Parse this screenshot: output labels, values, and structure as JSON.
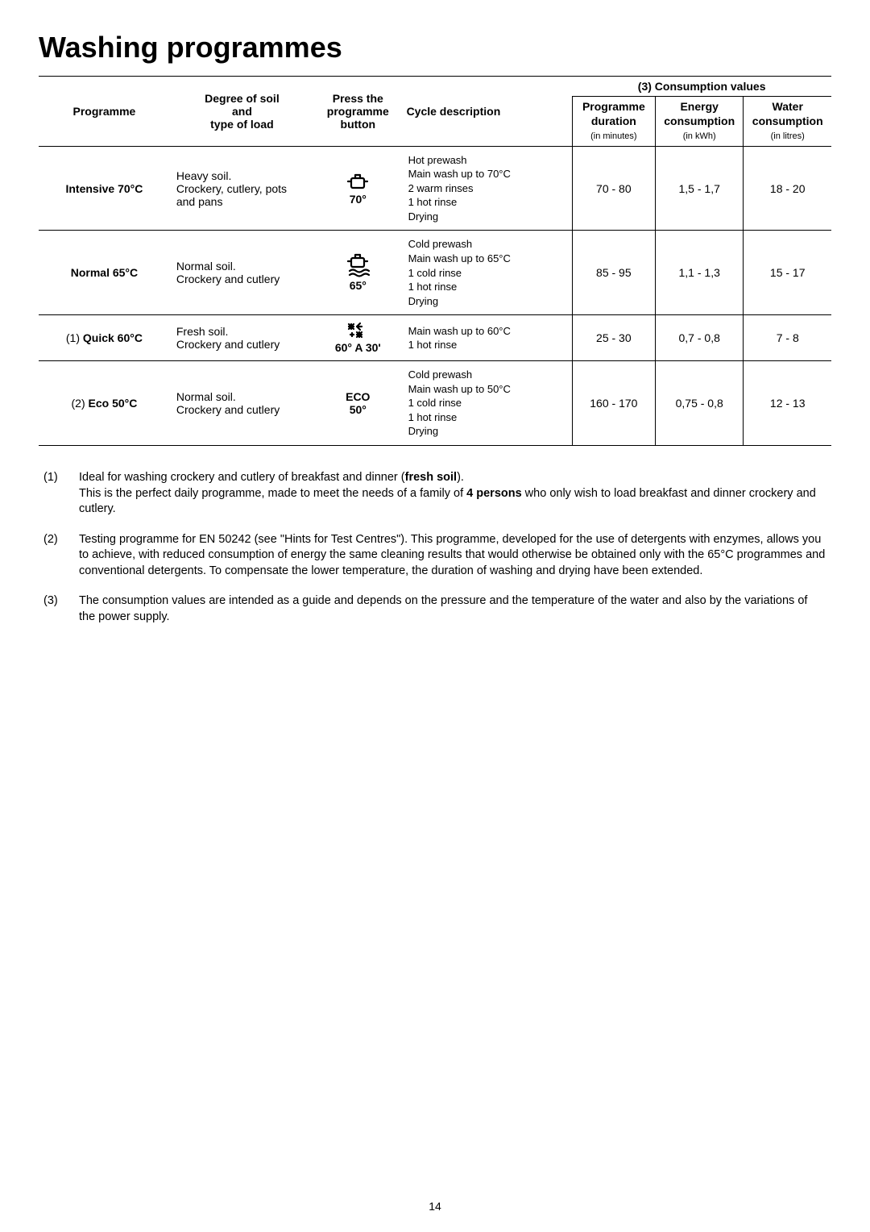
{
  "title": "Washing programmes",
  "table": {
    "headers": {
      "programme": "Programme",
      "soil": "Degree of soil\nand\ntype of load",
      "button": "Press the\nprogramme\nbutton",
      "cycle": "Cycle description",
      "consumption_group": "(3) Consumption values",
      "sub": {
        "duration": "Programme\nduration",
        "duration_unit": "(in minutes)",
        "energy": "Energy\nconsumption",
        "energy_unit": "(in kWh)",
        "water": "Water\nconsumption",
        "water_unit": "(in litres)"
      }
    },
    "rows": [
      {
        "prefix": "",
        "name": "Intensive 70°C",
        "soil": "Heavy soil.\nCrockery, cutlery, pots and pans",
        "button_icon": "pot",
        "button_label": "70°",
        "cycle": "Hot prewash\nMain wash up to 70°C\n2 warm rinses\n1 hot rinse\nDrying",
        "duration": "70 - 80",
        "energy": "1,5 - 1,7",
        "water": "18 - 20"
      },
      {
        "prefix": "",
        "name": "Normal 65°C",
        "soil": "Normal soil.\nCrockery and cutlery",
        "button_icon": "pot-waves",
        "button_label": "65°",
        "cycle": "Cold prewash\nMain wash up to 65°C\n1 cold rinse\n1 hot rinse\nDrying",
        "duration": "85 - 95",
        "energy": "1,1 - 1,3",
        "water": "15 - 17"
      },
      {
        "prefix": "(1) ",
        "name": "Quick 60°C",
        "soil": "Fresh soil.\nCrockery and cutlery",
        "button_icon": "sparkle",
        "button_label": "60° A 30'",
        "cycle": "Main wash up to 60°C\n1 hot rinse",
        "duration": "25 - 30",
        "energy": "0,7 - 0,8",
        "water": "7 - 8"
      },
      {
        "prefix": "(2) ",
        "name": "Eco 50°C",
        "soil": "Normal soil.\nCrockery and cutlery",
        "button_icon": "eco",
        "button_label": "ECO\n50°",
        "cycle": "Cold prewash\nMain wash up to 50°C\n1 cold rinse\n1 hot rinse\nDrying",
        "duration": "160 - 170",
        "energy": "0,75 - 0,8",
        "water": "12 - 13"
      }
    ]
  },
  "footnotes": {
    "n1_a": "Ideal for washing crockery and cutlery of breakfast and dinner (",
    "n1_b": "fresh soil",
    "n1_c": ").",
    "n1_d": " This is the perfect daily programme, made to meet the needs of a family of ",
    "n1_e": "4 persons",
    "n1_f": " who only wish to load breakfast and dinner crockery and cutlery.",
    "n2": "Testing programme for EN 50242 (see \"Hints for Test Centres\"). This programme, developed for the use of detergents with enzymes, allows you to achieve, with reduced consumption of energy the same cleaning results that would otherwise be obtained only with the 65°C programmes and conventional detergents. To compensate the lower temperature, the duration of washing and drying have been extended.",
    "n3": "The consumption values are intended as a guide and depends on the pressure and the temperature of the water and also by the variations of the power supply."
  },
  "page_number": "14"
}
